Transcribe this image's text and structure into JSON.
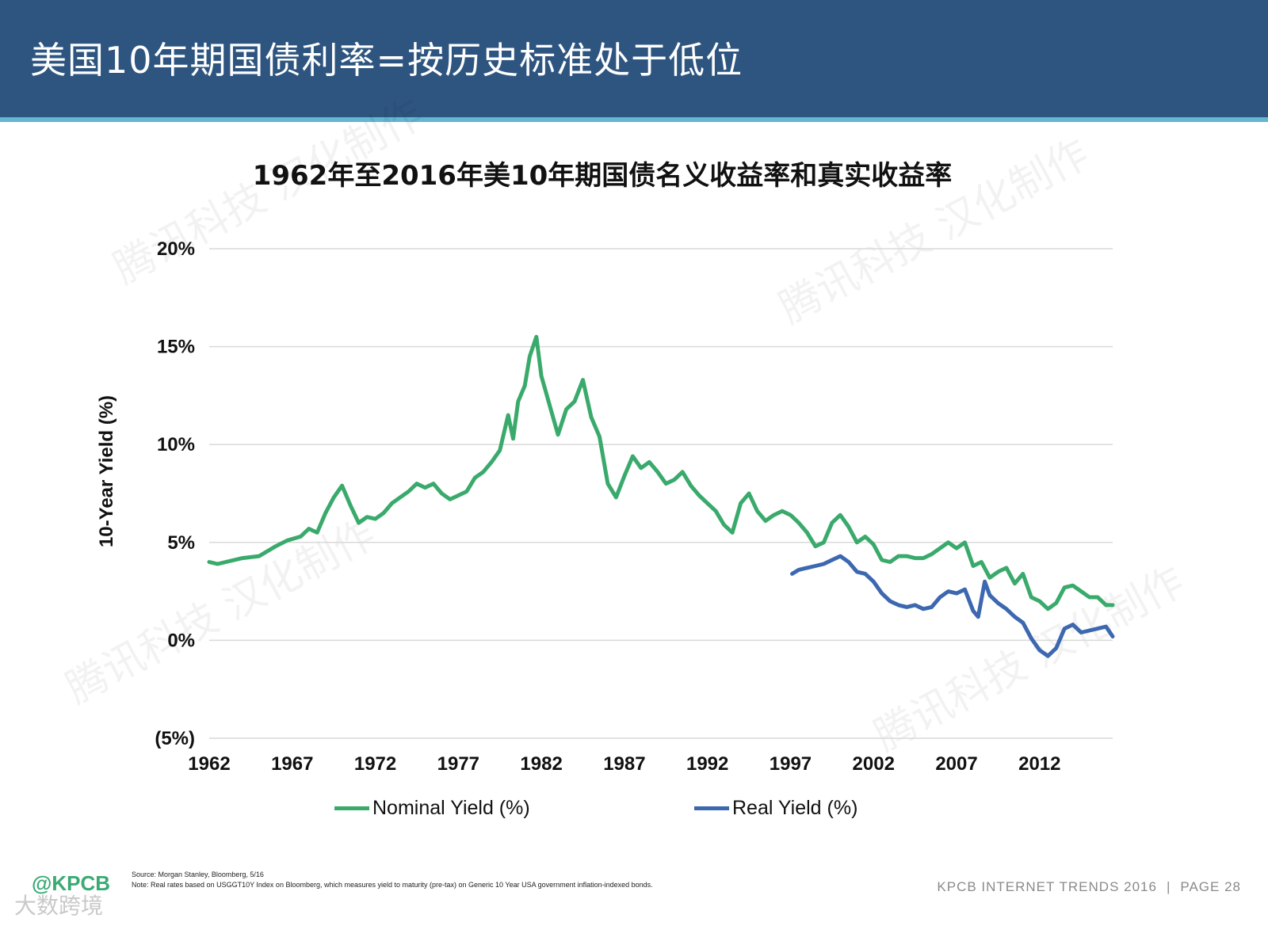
{
  "page": {
    "heading": "美国10年期国债利率=按历史标准处于低位",
    "footer_logo": "@KPCB",
    "footer_brand": "KPCB INTERNET TRENDS 2016",
    "footer_page": "PAGE 28",
    "source_line": "Source: Morgan Stanley, Bloomberg, 5/16",
    "note_line": "Note: Real rates based on USGGT10Y Index on Bloomberg, which measures yield to maturity (pre-tax) on Generic 10 Year USA government inflation-indexed bonds.",
    "corner_mark": "大数跨境",
    "watermark_text": "腾讯科技 汉化制作"
  },
  "colors": {
    "banner": "#2e5580",
    "stripe": "#63b7cf",
    "nominal": "#3aaa6c",
    "real": "#3d68b0",
    "grid": "#d9d9d9"
  },
  "chart_data": {
    "type": "line",
    "title": "1962年至2016年美10年期国债名义收益率和真实收益率",
    "xlabel": "",
    "ylabel": "10-Year Yield (%)",
    "xlim": [
      1962,
      2016.4
    ],
    "ylim": [
      -5,
      20
    ],
    "x_ticks": [
      1962,
      1967,
      1972,
      1977,
      1982,
      1987,
      1992,
      1997,
      2002,
      2007,
      2012
    ],
    "y_ticks": [
      -5,
      0,
      5,
      10,
      15,
      20
    ],
    "y_tick_labels": [
      "(5%)",
      "0%",
      "5%",
      "10%",
      "15%",
      "20%"
    ],
    "grid": true,
    "legend_position": "bottom",
    "series": [
      {
        "name": "Nominal Yield (%)",
        "x": [
          1962,
          1962.5,
          1963,
          1964,
          1965,
          1966,
          1966.7,
          1967.5,
          1968,
          1968.5,
          1969,
          1969.5,
          1970,
          1970.5,
          1971,
          1971.5,
          1972,
          1972.5,
          1973,
          1973.5,
          1974,
          1974.5,
          1975,
          1975.5,
          1976,
          1976.5,
          1977,
          1977.5,
          1978,
          1978.5,
          1979,
          1979.5,
          1980,
          1980.3,
          1980.6,
          1981,
          1981.3,
          1981.7,
          1982,
          1982.5,
          1983,
          1983.5,
          1984,
          1984.5,
          1985,
          1985.5,
          1986,
          1986.5,
          1987,
          1987.5,
          1988,
          1988.5,
          1989,
          1989.5,
          1990,
          1990.5,
          1991,
          1991.5,
          1992,
          1992.5,
          1993,
          1993.5,
          1994,
          1994.5,
          1995,
          1995.5,
          1996,
          1996.5,
          1997,
          1997.5,
          1998,
          1998.5,
          1999,
          1999.5,
          2000,
          2000.5,
          2001,
          2001.5,
          2002,
          2002.5,
          2003,
          2003.5,
          2004,
          2004.5,
          2005,
          2005.5,
          2006,
          2006.5,
          2007,
          2007.5,
          2008,
          2008.5,
          2009,
          2009.5,
          2010,
          2010.5,
          2011,
          2011.5,
          2012,
          2012.5,
          2013,
          2013.5,
          2014,
          2014.5,
          2015,
          2015.5,
          2016,
          2016.4
        ],
        "values": [
          4.0,
          3.9,
          4.0,
          4.2,
          4.3,
          4.8,
          5.1,
          5.3,
          5.7,
          5.5,
          6.5,
          7.3,
          7.9,
          6.9,
          6.0,
          6.3,
          6.2,
          6.5,
          7.0,
          7.3,
          7.6,
          8.0,
          7.8,
          8.0,
          7.5,
          7.2,
          7.4,
          7.6,
          8.3,
          8.6,
          9.1,
          9.7,
          11.5,
          10.3,
          12.2,
          13.0,
          14.5,
          15.5,
          13.5,
          12.0,
          10.5,
          11.8,
          12.2,
          13.3,
          11.4,
          10.4,
          8.0,
          7.3,
          8.4,
          9.4,
          8.8,
          9.1,
          8.6,
          8.0,
          8.2,
          8.6,
          7.9,
          7.4,
          7.0,
          6.6,
          5.9,
          5.5,
          7.0,
          7.5,
          6.6,
          6.1,
          6.4,
          6.6,
          6.4,
          6.0,
          5.5,
          4.8,
          5.0,
          6.0,
          6.4,
          5.8,
          5.0,
          5.3,
          4.9,
          4.1,
          4.0,
          4.3,
          4.3,
          4.2,
          4.2,
          4.4,
          4.7,
          5.0,
          4.7,
          5.0,
          3.8,
          4.0,
          3.2,
          3.5,
          3.7,
          2.9,
          3.4,
          2.2,
          2.0,
          1.6,
          1.9,
          2.7,
          2.8,
          2.5,
          2.2,
          2.2,
          1.8,
          1.8
        ]
      },
      {
        "name": "Real Yield (%)",
        "x": [
          1997.1,
          1997.5,
          1998,
          1998.5,
          1999,
          1999.5,
          2000,
          2000.5,
          2001,
          2001.5,
          2002,
          2002.5,
          2003,
          2003.5,
          2004,
          2004.5,
          2005,
          2005.5,
          2006,
          2006.5,
          2007,
          2007.5,
          2008,
          2008.3,
          2008.7,
          2009,
          2009.5,
          2010,
          2010.5,
          2011,
          2011.5,
          2012,
          2012.5,
          2013,
          2013.5,
          2014,
          2014.5,
          2015,
          2015.5,
          2016,
          2016.4
        ],
        "values": [
          3.4,
          3.6,
          3.7,
          3.8,
          3.9,
          4.1,
          4.3,
          4.0,
          3.5,
          3.4,
          3.0,
          2.4,
          2.0,
          1.8,
          1.7,
          1.8,
          1.6,
          1.7,
          2.2,
          2.5,
          2.4,
          2.6,
          1.5,
          1.2,
          3.0,
          2.3,
          1.9,
          1.6,
          1.2,
          0.9,
          0.1,
          -0.5,
          -0.8,
          -0.4,
          0.6,
          0.8,
          0.4,
          0.5,
          0.6,
          0.7,
          0.2
        ]
      }
    ]
  }
}
